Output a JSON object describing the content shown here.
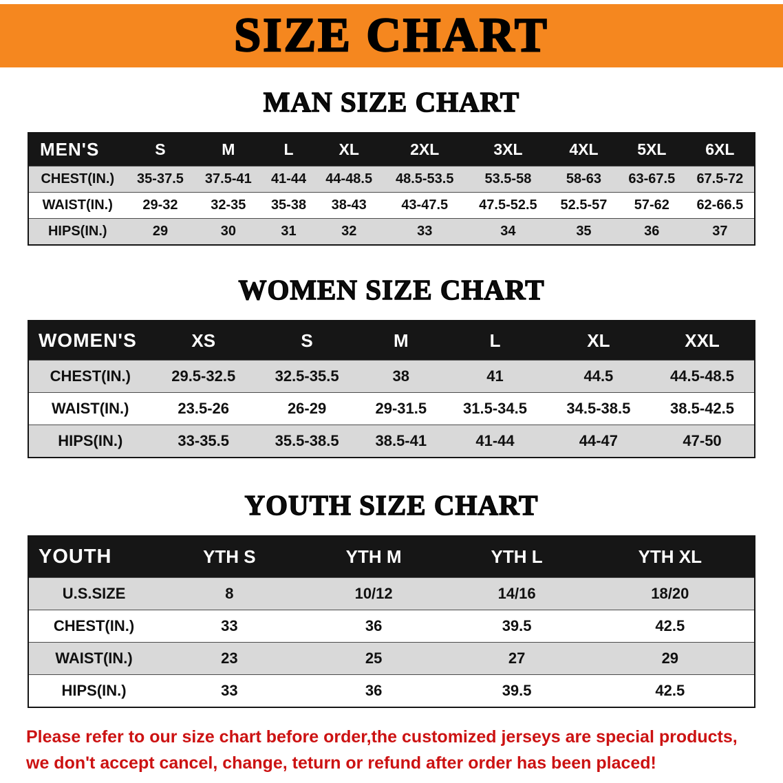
{
  "banner": {
    "title": "SIZE CHART",
    "bg_color": "#F5871F"
  },
  "sections": [
    {
      "heading": "MAN SIZE CHART",
      "table": {
        "header": [
          "MEN'S",
          "S",
          "M",
          "L",
          "XL",
          "2XL",
          "3XL",
          "4XL",
          "5XL",
          "6XL"
        ],
        "rows": [
          [
            "CHEST(IN.)",
            "35-37.5",
            "37.5-41",
            "41-44",
            "44-48.5",
            "48.5-53.5",
            "53.5-58",
            "58-63",
            "63-67.5",
            "67.5-72"
          ],
          [
            "WAIST(IN.)",
            "29-32",
            "32-35",
            "35-38",
            "38-43",
            "43-47.5",
            "47.5-52.5",
            "52.5-57",
            "57-62",
            "62-66.5"
          ],
          [
            "HIPS(IN.)",
            "29",
            "30",
            "31",
            "32",
            "33",
            "34",
            "35",
            "36",
            "37"
          ]
        ]
      }
    },
    {
      "heading": "WOMEN SIZE CHART",
      "table": {
        "header": [
          "WOMEN'S",
          "XS",
          "S",
          "M",
          "L",
          "XL",
          "XXL"
        ],
        "rows": [
          [
            "CHEST(IN.)",
            "29.5-32.5",
            "32.5-35.5",
            "38",
            "41",
            "44.5",
            "44.5-48.5"
          ],
          [
            "WAIST(IN.)",
            "23.5-26",
            "26-29",
            "29-31.5",
            "31.5-34.5",
            "34.5-38.5",
            "38.5-42.5"
          ],
          [
            "HIPS(IN.)",
            "33-35.5",
            "35.5-38.5",
            "38.5-41",
            "41-44",
            "44-47",
            "47-50"
          ]
        ]
      }
    },
    {
      "heading": "YOUTH SIZE CHART",
      "table": {
        "header": [
          "YOUTH",
          "YTH S",
          "YTH M",
          "YTH L",
          "YTH XL"
        ],
        "rows": [
          [
            "U.S.SIZE",
            "8",
            "10/12",
            "14/16",
            "18/20"
          ],
          [
            "CHEST(IN.)",
            "33",
            "36",
            "39.5",
            "42.5"
          ],
          [
            "WAIST(IN.)",
            "23",
            "25",
            "27",
            "29"
          ],
          [
            "HIPS(IN.)",
            "33",
            "36",
            "39.5",
            "42.5"
          ]
        ]
      }
    }
  ],
  "disclaimer": {
    "line1": "Please refer to our size chart before order,the customized jerseys are special products,",
    "line2": "we don't accept cancel, change, teturn or refund after order has been placed!",
    "text_color": "#CC1212"
  }
}
